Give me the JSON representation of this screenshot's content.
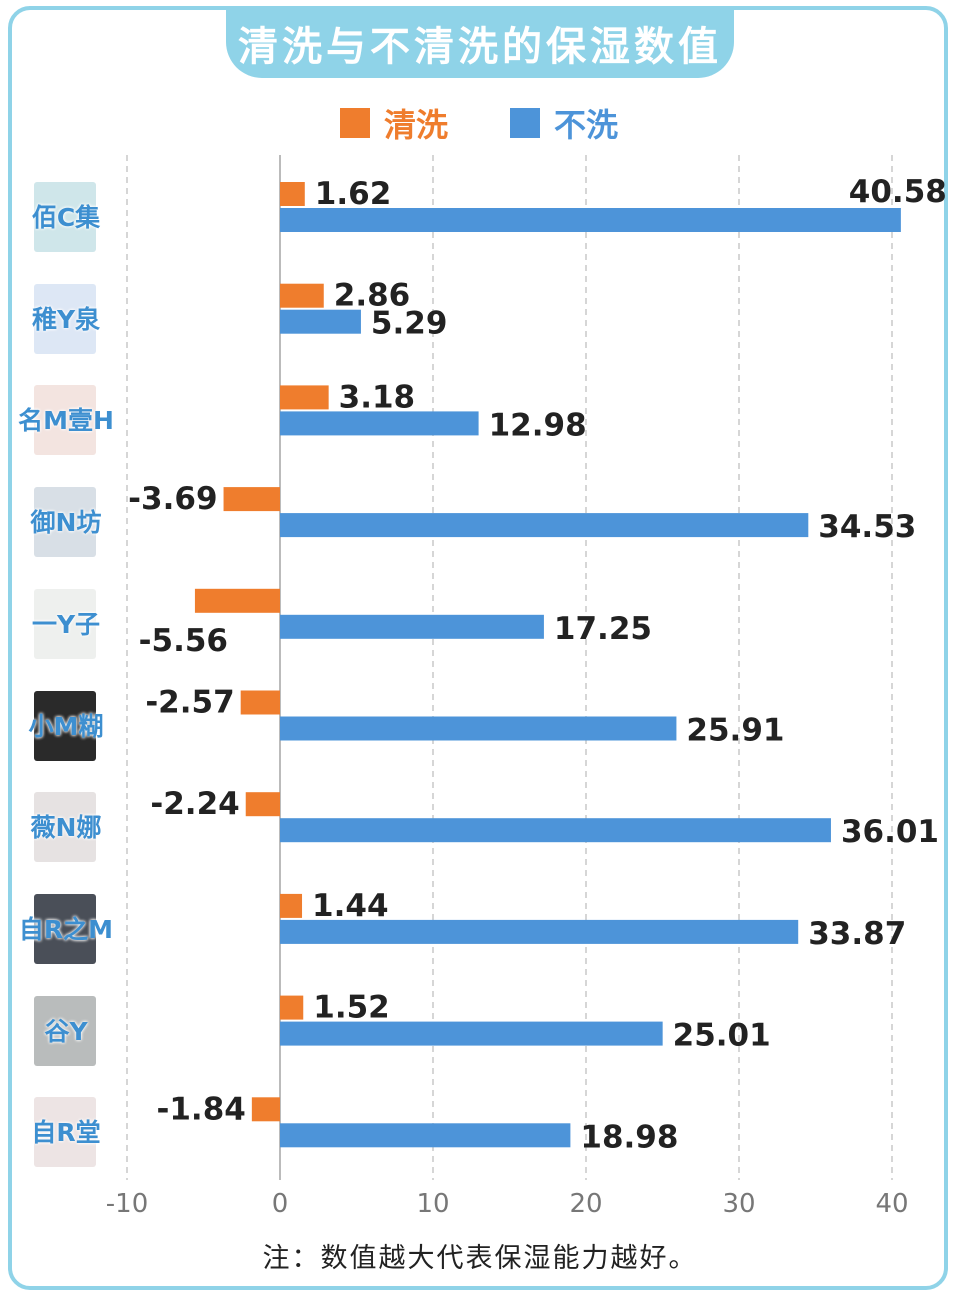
{
  "title": "清洗与不清洗的保湿数值",
  "legend": [
    {
      "label": "清洗",
      "color": "#ef7d2d"
    },
    {
      "label": "不洗",
      "color": "#4d94d9"
    }
  ],
  "note": "注：数值越大代表保湿能力越好。",
  "colors": {
    "frame": "#8fd3e8",
    "clean": "#ef7d2d",
    "noclean": "#4d94d9",
    "brand_text": "#3d8fd0"
  },
  "chart_data": {
    "type": "bar",
    "orientation": "horizontal",
    "categories": [
      "佰C集",
      "稚Y泉",
      "名M壹H",
      "御N坊",
      "一Y子",
      "小M糊",
      "薇N娜",
      "自R之M",
      "谷Y",
      "自R堂"
    ],
    "series": [
      {
        "name": "清洗",
        "color": "#ef7d2d",
        "values": [
          1.62,
          2.86,
          3.18,
          -3.69,
          -5.56,
          -2.57,
          -2.24,
          1.44,
          1.52,
          -1.84
        ],
        "labels": [
          "1.62",
          "2.86",
          "3.18",
          "-3.69",
          "-5.56",
          "-2.57",
          "-2.24",
          "1.44",
          "1.52",
          "-1.84"
        ]
      },
      {
        "name": "不洗",
        "color": "#4d94d9",
        "values": [
          40.58,
          5.29,
          12.98,
          34.53,
          17.25,
          25.91,
          36.01,
          33.87,
          25.01,
          18.98
        ],
        "labels": [
          "40.58",
          "5.29",
          "12.98",
          "34.53",
          "17.25",
          "25.91",
          "36.01",
          "33.87",
          "25.01",
          "18.98"
        ]
      }
    ],
    "xlim": [
      -10,
      40
    ],
    "xticks": [
      "-10",
      "0",
      "10",
      "20",
      "30",
      "40"
    ],
    "grid": "vertical dashed",
    "legend_position": "top-center"
  }
}
